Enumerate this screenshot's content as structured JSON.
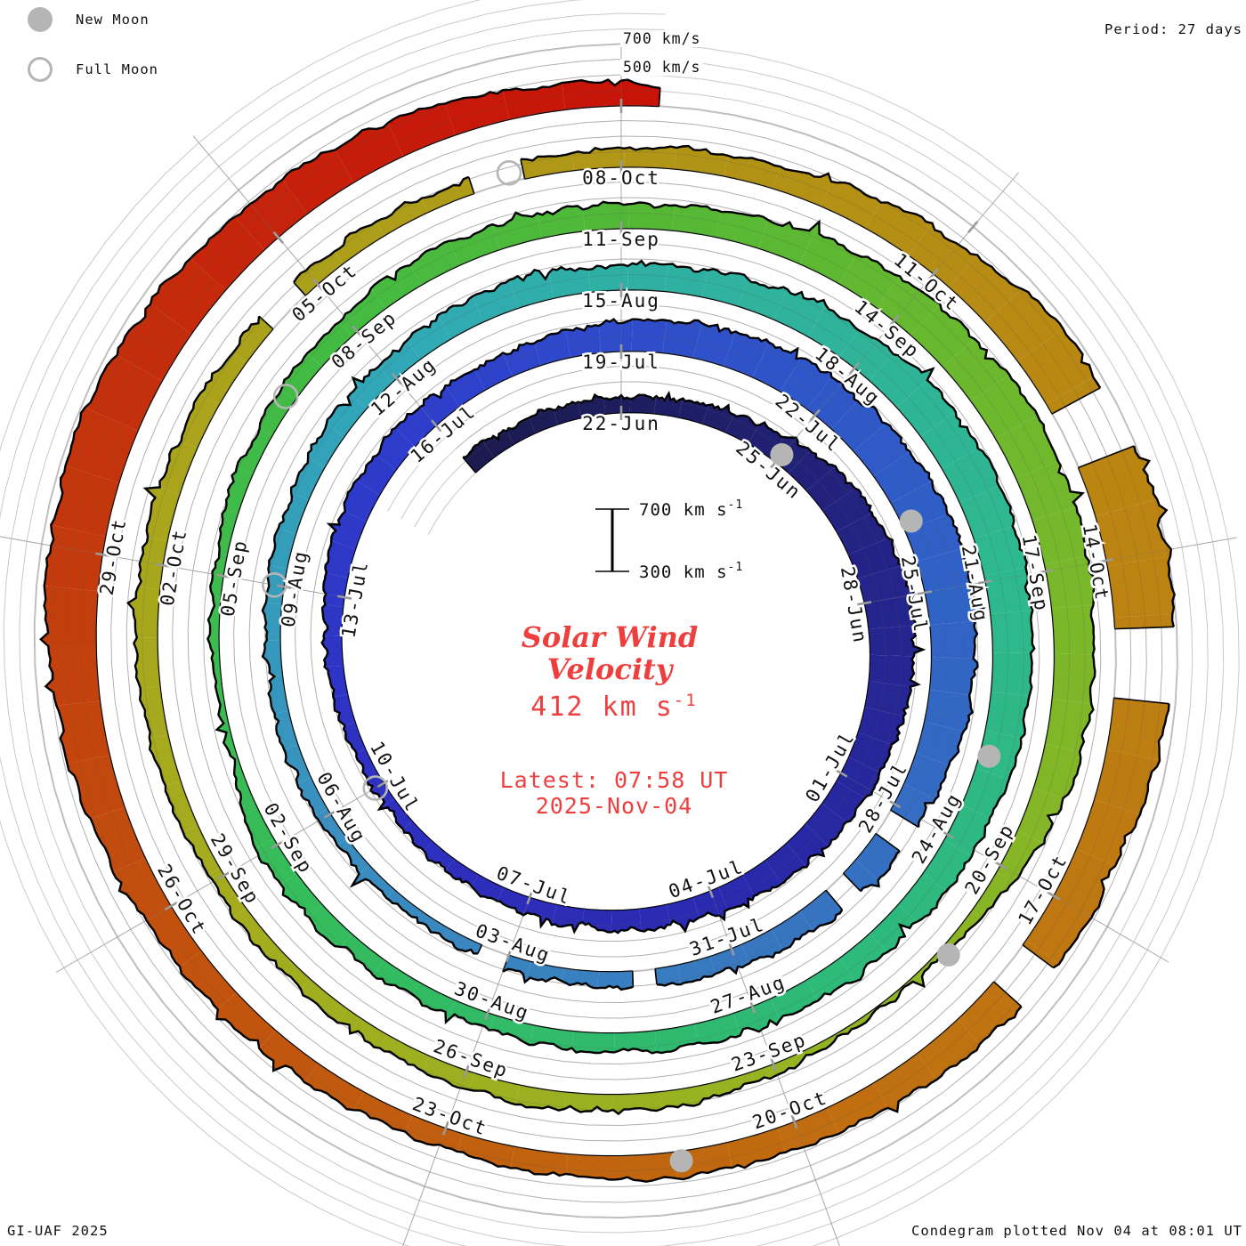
{
  "legend": {
    "new_moon": "New Moon",
    "full_moon": "Full Moon"
  },
  "period_label": "Period: 27 days",
  "grid_labels": {
    "outer": "700 km/s",
    "inner": "500 km/s"
  },
  "scale_bar": {
    "top": "700 km s",
    "bottom": "300 km s",
    "exp": "-1"
  },
  "center": {
    "title_line1": "Solar Wind",
    "title_line2": "Velocity",
    "value": "412 km s",
    "value_exp": "-1",
    "latest_line1": "Latest: 07:58 UT",
    "latest_line2": "2025-Nov-04"
  },
  "footer": {
    "left": "GI-UAF 2025",
    "right": "Condegram plotted Nov 04 at 08:01 UT"
  },
  "chart_data": {
    "type": "area",
    "subtype": "condegram-polar-spiral",
    "title": "Solar Wind Velocity",
    "period_days": 27,
    "velocity_range_km_s": [
      300,
      700
    ],
    "grid_levels_km_s": [
      300,
      400,
      500,
      600,
      700
    ],
    "latest_value_km_s": 412,
    "latest_time": "2025-Nov-04 07:58 UT",
    "plotted_time": "Nov 04 at 08:01 UT",
    "epoch_day0": "2025-Jun-22",
    "data_start_day": -3.0,
    "data_end_day": 135.33,
    "spoke_step_days": 3,
    "ring_start_labels": [
      "22-Jun",
      "19-Jul",
      "15-Aug",
      "11-Sep",
      "08-Oct"
    ],
    "date_labels": [
      [
        "22-Jun",
        0
      ],
      [
        "25-Jun",
        3
      ],
      [
        "28-Jun",
        6
      ],
      [
        "01-Jul",
        9
      ],
      [
        "04-Jul",
        12
      ],
      [
        "07-Jul",
        15
      ],
      [
        "10-Jul",
        18
      ],
      [
        "13-Jul",
        21
      ],
      [
        "16-Jul",
        24
      ],
      [
        "19-Jul",
        27
      ],
      [
        "22-Jul",
        30
      ],
      [
        "25-Jul",
        33
      ],
      [
        "28-Jul",
        36
      ],
      [
        "31-Jul",
        39
      ],
      [
        "03-Aug",
        42
      ],
      [
        "06-Aug",
        45
      ],
      [
        "09-Aug",
        48
      ],
      [
        "12-Aug",
        51
      ],
      [
        "15-Aug",
        54
      ],
      [
        "18-Aug",
        57
      ],
      [
        "21-Aug",
        60
      ],
      [
        "24-Aug",
        63
      ],
      [
        "27-Aug",
        66
      ],
      [
        "30-Aug",
        69
      ],
      [
        "02-Sep",
        72
      ],
      [
        "05-Sep",
        75
      ],
      [
        "08-Sep",
        78
      ],
      [
        "11-Sep",
        81
      ],
      [
        "14-Sep",
        84
      ],
      [
        "17-Sep",
        87
      ],
      [
        "20-Sep",
        90
      ],
      [
        "23-Sep",
        93
      ],
      [
        "26-Sep",
        96
      ],
      [
        "29-Sep",
        99
      ],
      [
        "02-Oct",
        102
      ],
      [
        "05-Oct",
        105
      ],
      [
        "08-Oct",
        108
      ],
      [
        "11-Oct",
        111
      ],
      [
        "14-Oct",
        114
      ],
      [
        "17-Oct",
        117
      ],
      [
        "20-Oct",
        120
      ],
      [
        "23-Oct",
        123
      ],
      [
        "26-Oct",
        126
      ],
      [
        "29-Oct",
        129
      ]
    ],
    "velocity_keyframes_day_kms": [
      [
        -3,
        430
      ],
      [
        -2,
        415
      ],
      [
        0,
        395
      ],
      [
        1,
        400
      ],
      [
        2,
        435
      ],
      [
        3,
        480
      ],
      [
        4,
        545
      ],
      [
        5,
        585
      ],
      [
        6,
        605
      ],
      [
        7,
        585
      ],
      [
        8,
        555
      ],
      [
        9,
        525
      ],
      [
        10,
        495
      ],
      [
        11,
        468
      ],
      [
        12,
        452
      ],
      [
        13,
        432
      ],
      [
        14,
        416
      ],
      [
        15,
        405
      ],
      [
        16,
        392
      ],
      [
        17,
        382
      ],
      [
        18,
        376
      ],
      [
        19,
        386
      ],
      [
        20,
        406
      ],
      [
        21,
        432
      ],
      [
        22,
        462
      ],
      [
        23,
        482
      ],
      [
        24,
        466
      ],
      [
        25,
        452
      ],
      [
        26,
        468
      ],
      [
        27,
        502
      ],
      [
        28,
        532
      ],
      [
        29,
        548
      ],
      [
        30,
        562
      ],
      [
        31,
        582
      ],
      [
        32,
        596
      ],
      [
        33,
        600
      ],
      [
        34,
        576
      ],
      [
        35,
        546
      ],
      [
        36,
        512
      ],
      [
        37,
        482
      ],
      [
        38,
        456
      ],
      [
        39,
        432
      ],
      [
        40,
        412
      ],
      [
        41,
        396
      ],
      [
        42,
        386
      ],
      [
        43,
        376
      ],
      [
        44,
        373
      ],
      [
        45,
        381
      ],
      [
        46,
        389
      ],
      [
        47,
        396
      ],
      [
        48,
        406
      ],
      [
        49,
        421
      ],
      [
        50,
        436
      ],
      [
        51,
        451
      ],
      [
        52,
        466
      ],
      [
        53,
        478
      ],
      [
        54,
        466
      ],
      [
        55,
        473
      ],
      [
        56,
        502
      ],
      [
        57,
        542
      ],
      [
        58,
        572
      ],
      [
        59,
        586
      ],
      [
        60,
        566
      ],
      [
        61,
        542
      ],
      [
        62,
        521
      ],
      [
        63,
        501
      ],
      [
        64,
        479
      ],
      [
        65,
        461
      ],
      [
        66,
        443
      ],
      [
        67,
        429
      ],
      [
        68,
        419
      ],
      [
        69,
        409
      ],
      [
        70,
        400
      ],
      [
        71,
        420
      ],
      [
        72,
        445
      ],
      [
        73,
        330
      ],
      [
        74,
        342
      ],
      [
        75,
        372
      ],
      [
        76,
        396
      ],
      [
        77,
        416
      ],
      [
        78,
        441
      ],
      [
        79,
        456
      ],
      [
        80,
        466
      ],
      [
        81,
        453
      ],
      [
        82,
        476
      ],
      [
        83,
        516
      ],
      [
        84,
        561
      ],
      [
        85,
        591
      ],
      [
        86,
        606
      ],
      [
        87,
        581
      ],
      [
        88,
        556
      ],
      [
        89,
        531
      ],
      [
        90,
        430
      ],
      [
        91,
        330
      ],
      [
        92,
        318
      ],
      [
        93,
        365
      ],
      [
        94,
        405
      ],
      [
        95,
        416
      ],
      [
        96,
        409
      ],
      [
        97,
        396
      ],
      [
        98,
        389
      ],
      [
        99,
        399
      ],
      [
        100,
        416
      ],
      [
        101,
        433
      ],
      [
        102,
        451
      ],
      [
        103,
        439
      ],
      [
        104,
        426
      ],
      [
        105,
        419
      ],
      [
        106,
        409
      ],
      [
        107,
        399
      ],
      [
        108,
        419
      ],
      [
        109,
        445
      ],
      [
        110,
        490
      ],
      [
        111,
        560
      ],
      [
        112,
        645
      ],
      [
        113,
        690
      ],
      [
        114,
        700
      ],
      [
        115,
        662
      ],
      [
        116,
        605
      ],
      [
        117,
        562
      ],
      [
        118,
        532
      ],
      [
        119,
        498
      ],
      [
        120,
        474
      ],
      [
        121,
        454
      ],
      [
        122,
        440
      ],
      [
        123,
        427
      ],
      [
        124,
        432
      ],
      [
        125,
        454
      ],
      [
        126,
        490
      ],
      [
        127,
        542
      ],
      [
        128,
        600
      ],
      [
        129,
        638
      ],
      [
        130,
        658
      ],
      [
        131,
        628
      ],
      [
        132,
        582
      ],
      [
        133,
        546
      ],
      [
        134,
        500
      ],
      [
        135,
        452
      ],
      [
        135.33,
        412
      ]
    ],
    "color_anchors_day_hex": [
      [
        -3,
        "#1b1b4e"
      ],
      [
        0,
        "#1d1d5e"
      ],
      [
        6,
        "#24248c"
      ],
      [
        12,
        "#2a2ab0"
      ],
      [
        18,
        "#2e30c2"
      ],
      [
        24,
        "#2e3ecc"
      ],
      [
        27,
        "#2f4cca"
      ],
      [
        33,
        "#3062c6"
      ],
      [
        39,
        "#3878c0"
      ],
      [
        45,
        "#3a90c0"
      ],
      [
        51,
        "#30a8b8"
      ],
      [
        54,
        "#2fb0a4"
      ],
      [
        60,
        "#2eb88e"
      ],
      [
        66,
        "#2eba74"
      ],
      [
        72,
        "#36bc58"
      ],
      [
        78,
        "#44bb42"
      ],
      [
        81,
        "#52b836"
      ],
      [
        87,
        "#78b82a"
      ],
      [
        93,
        "#96b322"
      ],
      [
        99,
        "#a4ac1e"
      ],
      [
        105,
        "#aca01a"
      ],
      [
        108,
        "#b09616"
      ],
      [
        114,
        "#bc8312"
      ],
      [
        120,
        "#c06c10"
      ],
      [
        126,
        "#c2500e"
      ],
      [
        130,
        "#c4320c"
      ],
      [
        133,
        "#c61c0a"
      ],
      [
        135.4,
        "#c81208"
      ]
    ],
    "moons": {
      "new": [
        [
          "25-Jun",
          3
        ],
        [
          "24-Jul",
          32
        ],
        [
          "23-Aug",
          62
        ],
        [
          "21-Sep",
          91
        ],
        [
          "21-Oct",
          121
        ]
      ],
      "full": [
        [
          "10-Jul",
          18
        ],
        [
          "09-Aug",
          48
        ],
        [
          "07-Sep",
          77
        ],
        [
          "07-Oct",
          107
        ]
      ]
    },
    "data_gaps_day": [
      [
        36.3,
        0.35
      ],
      [
        37.35,
        0.3
      ],
      [
        40.2,
        0.3
      ],
      [
        42.2,
        0.35
      ],
      [
        104.65,
        0.4
      ],
      [
        106.9,
        0.45
      ],
      [
        112.9,
        0.5
      ],
      [
        114.9,
        0.6
      ],
      [
        117.7,
        0.4
      ]
    ],
    "text_color": "#ee3f3f",
    "moon_color": "#b5b5b5",
    "grid_color": "#c9c9c9",
    "spoke_color": "#bdbdbd"
  }
}
